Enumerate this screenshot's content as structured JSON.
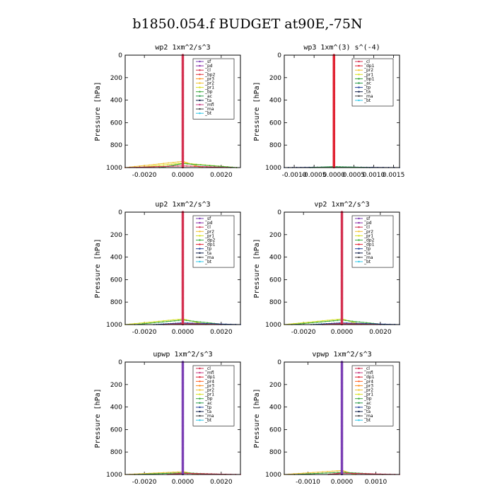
{
  "figure_title": "b1850.054.f  BUDGET at90E,-75N",
  "colors": {
    "sf": "#7b3fb5",
    "pd": "#8a2ba8",
    "cl": "#d43050",
    "bp2": "#e0303a",
    "pr3": "#ff8c1a",
    "pr2": "#f2c230",
    "pr1": "#d8e020",
    "bp": "#3aa83a",
    "ac": "#2a9a4a",
    "tp": "#1f3f9a",
    "ta": "#10204a",
    "mfl": "#c83880",
    "dp1": "#e02030",
    "dp2": "#3fae3f",
    "pr4": "#ff6020",
    "bp1": "#30a030",
    "ma": "#404040",
    "bt": "#30c8e8"
  },
  "chart_data": [
    {
      "type": "line",
      "title": "wp2  1xm^2/s^3",
      "ylabel": "Pressure [hPa]",
      "xlim": [
        -0.003,
        0.003
      ],
      "ylim": [
        1000,
        0
      ],
      "xticks": [
        -0.002,
        0.0,
        0.002
      ],
      "xtick_labels": [
        "-0.0020",
        "0.0000",
        "0.0020"
      ],
      "yticks": [
        0,
        200,
        400,
        600,
        800,
        1000
      ],
      "ytick_labels": [
        "0",
        "200",
        "400",
        "600",
        "800",
        "1000"
      ],
      "legend": [
        "_sf",
        "_pd",
        "_cl",
        "_bp2",
        "_pr3",
        "_pr2",
        "_pr1",
        "_bp",
        "_ac",
        "_ta",
        "_mfl",
        "_ma",
        "_bt"
      ],
      "legend_colors": [
        "sf",
        "pd",
        "cl",
        "bp2",
        "pr3",
        "pr2",
        "pr1",
        "bp",
        "ac",
        "ta",
        "mfl",
        "ma",
        "bt"
      ],
      "main_series": "cl",
      "spread": [
        {
          "key": "pr2",
          "p_top": 945,
          "x_left": -0.003,
          "x_right": 0.001
        },
        {
          "key": "pr1",
          "p_top": 960,
          "x_left": -0.0024,
          "x_right": 0.0028
        },
        {
          "key": "bp",
          "p_top": 965,
          "x_left": -0.0012,
          "x_right": 0.0028
        },
        {
          "key": "cl",
          "p_top": 985,
          "x_left": -0.003,
          "x_right": 0.0025
        }
      ]
    },
    {
      "type": "line",
      "title": "wp3  1xm^(3) s^(-4)",
      "ylabel": "Pressure [hPa]",
      "xlim": [
        -0.00125,
        0.00165
      ],
      "ylim": [
        1000,
        0
      ],
      "xticks": [
        -0.001,
        -0.0005,
        0.0,
        0.0005,
        0.001,
        0.0015
      ],
      "xtick_labels": [
        "-0.0010",
        "-0.0005",
        "0.0000",
        "0.0005",
        "0.0010",
        "0.0015"
      ],
      "yticks": [
        0,
        200,
        400,
        600,
        800,
        1000
      ],
      "ytick_labels": [
        "0",
        "200",
        "400",
        "600",
        "800",
        "1000"
      ],
      "legend": [
        "_cl",
        "_dp1",
        "_pr2",
        "_pr1",
        "_bp1",
        "_ac",
        "_tp",
        "_ta",
        "_ma",
        "_bt"
      ],
      "legend_colors": [
        "cl",
        "dp1",
        "pr2",
        "pr1",
        "bp1",
        "ac",
        "tp",
        "ta",
        "ma",
        "bt"
      ],
      "main_series": "dp1",
      "spread": [
        {
          "key": "tp",
          "p_top": 995,
          "x_left": -0.00125,
          "x_right": 0.00165
        },
        {
          "key": "ac",
          "p_top": 992,
          "x_left": -0.0006,
          "x_right": 0.0009
        }
      ]
    },
    {
      "type": "line",
      "title": "up2  1xm^2/s^3",
      "ylabel": "Pressure [hPa]",
      "xlim": [
        -0.003,
        0.003
      ],
      "ylim": [
        1000,
        0
      ],
      "xticks": [
        -0.002,
        0.0,
        0.002
      ],
      "xtick_labels": [
        "-0.0020",
        "0.0000",
        "0.0020"
      ],
      "yticks": [
        0,
        200,
        400,
        600,
        800,
        1000
      ],
      "ytick_labels": [
        "0",
        "200",
        "400",
        "600",
        "800",
        "1000"
      ],
      "legend": [
        "_sf",
        "_pd",
        "_cl",
        "_pr2",
        "_pr1",
        "_dp2",
        "_dp1",
        "_tp",
        "_ta",
        "_ma",
        "_bt"
      ],
      "legend_colors": [
        "sf",
        "pd",
        "cl",
        "pr2",
        "pr1",
        "dp2",
        "dp1",
        "tp",
        "ta",
        "ma",
        "bt"
      ],
      "main_series": "cl",
      "spread": [
        {
          "key": "pr1",
          "p_top": 950,
          "x_left": -0.003,
          "x_right": 0.0012
        },
        {
          "key": "dp2",
          "p_top": 960,
          "x_left": -0.0025,
          "x_right": 0.0022
        },
        {
          "key": "tp",
          "p_top": 985,
          "x_left": -0.0015,
          "x_right": 0.003
        },
        {
          "key": "cl",
          "p_top": 992,
          "x_left": -0.001,
          "x_right": 0.002
        }
      ]
    },
    {
      "type": "line",
      "title": "vp2  1xm^2/s^3",
      "ylabel": "Pressure [hPa]",
      "xlim": [
        -0.003,
        0.003
      ],
      "ylim": [
        1000,
        0
      ],
      "xticks": [
        -0.002,
        0.0,
        0.002
      ],
      "xtick_labels": [
        "-0.0020",
        "0.0000",
        "0.0020"
      ],
      "yticks": [
        0,
        200,
        400,
        600,
        800,
        1000
      ],
      "ytick_labels": [
        "0",
        "200",
        "400",
        "600",
        "800",
        "1000"
      ],
      "legend": [
        "_sf",
        "_pd",
        "_cl",
        "_pr2",
        "_pr1",
        "_dp2",
        "_dp1",
        "_tp",
        "_ta",
        "_ma",
        "_bt"
      ],
      "legend_colors": [
        "sf",
        "pd",
        "cl",
        "pr2",
        "pr1",
        "dp2",
        "dp1",
        "tp",
        "ta",
        "ma",
        "bt"
      ],
      "main_series": "cl",
      "spread": [
        {
          "key": "pr1",
          "p_top": 950,
          "x_left": -0.003,
          "x_right": 0.001
        },
        {
          "key": "dp2",
          "p_top": 960,
          "x_left": -0.0026,
          "x_right": 0.0022
        },
        {
          "key": "tp",
          "p_top": 985,
          "x_left": -0.0016,
          "x_right": 0.003
        },
        {
          "key": "cl",
          "p_top": 992,
          "x_left": -0.001,
          "x_right": 0.002
        }
      ]
    },
    {
      "type": "line",
      "title": "upwp  1xm^2/s^3",
      "ylabel": "Pressure [hPa]",
      "xlim": [
        -0.003,
        0.003
      ],
      "ylim": [
        1000,
        0
      ],
      "xticks": [
        -0.002,
        0.0,
        0.002
      ],
      "xtick_labels": [
        "-0.0020",
        "0.0000",
        "0.0020"
      ],
      "yticks": [
        0,
        200,
        400,
        600,
        800,
        1000
      ],
      "ytick_labels": [
        "0",
        "200",
        "400",
        "600",
        "800",
        "1000"
      ],
      "legend": [
        "_cl",
        "_mfl",
        "_dp1",
        "_pr4",
        "_pr3",
        "_pr2",
        "_pr1",
        "_bp",
        "_ac",
        "_tp",
        "_ta",
        "_ma",
        "_bt"
      ],
      "legend_colors": [
        "cl",
        "mfl",
        "dp1",
        "pr4",
        "pr3",
        "pr2",
        "pr1",
        "bp",
        "ac",
        "tp",
        "ta",
        "ma",
        "bt"
      ],
      "main_series": "sf",
      "spread": [
        {
          "key": "pr2",
          "p_top": 975,
          "x_left": -0.003,
          "x_right": 0.0008
        },
        {
          "key": "bp",
          "p_top": 985,
          "x_left": -0.0025,
          "x_right": 0.0022
        },
        {
          "key": "cl",
          "p_top": 990,
          "x_left": -0.0008,
          "x_right": 0.003
        }
      ]
    },
    {
      "type": "line",
      "title": "vpwp  1xm^2/s^3",
      "ylabel": "Pressure [hPa]",
      "xlim": [
        -0.0017,
        0.0017
      ],
      "ylim": [
        1000,
        0
      ],
      "xticks": [
        -0.001,
        0.0,
        0.001
      ],
      "xtick_labels": [
        "-0.0010",
        "0.0000",
        "0.0010"
      ],
      "yticks": [
        0,
        200,
        400,
        600,
        800,
        1000
      ],
      "ytick_labels": [
        "0",
        "200",
        "400",
        "600",
        "800",
        "1000"
      ],
      "legend": [
        "_cl",
        "_mfl",
        "_dp1",
        "_pr4",
        "_pr3",
        "_pr2",
        "_pr1",
        "_bp",
        "_ac",
        "_tp",
        "_ta",
        "_ma",
        "_bt"
      ],
      "legend_colors": [
        "cl",
        "mfl",
        "dp1",
        "pr4",
        "pr3",
        "pr2",
        "pr1",
        "bp",
        "ac",
        "tp",
        "ta",
        "ma",
        "bt"
      ],
      "main_series": "sf",
      "spread": [
        {
          "key": "pr2",
          "p_top": 965,
          "x_left": -0.0017,
          "x_right": 0.0004
        },
        {
          "key": "bp",
          "p_top": 980,
          "x_left": -0.0014,
          "x_right": 0.0012
        },
        {
          "key": "cl",
          "p_top": 988,
          "x_left": -0.0004,
          "x_right": 0.0017
        }
      ]
    }
  ]
}
